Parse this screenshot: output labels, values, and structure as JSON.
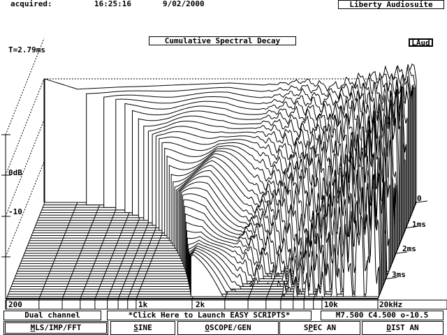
{
  "header": {
    "acquired_label": "acquired:",
    "time": "16:25:16",
    "date": "9/02/2000",
    "app_name": "Liberty Audiosuite"
  },
  "plot": {
    "title": "Cumulative Spectral Decay",
    "channel_tag": "LAud",
    "window_time": "T=2.79ms"
  },
  "status": {
    "mode": "Dual channel",
    "scripts_link": "*Click Here to Launch EASY SCRIPTS*",
    "markers": "M7.500 C4.500 o-10.5"
  },
  "buttons": [
    {
      "pre": "",
      "key": "M",
      "post": "LS/IMP/FFT",
      "active": true
    },
    {
      "pre": "",
      "key": "S",
      "post": "INE",
      "active": false
    },
    {
      "pre": "",
      "key": "O",
      "post": "SCOPE/GEN",
      "active": false
    },
    {
      "pre": "S",
      "key": "P",
      "post": "EC AN",
      "active": false
    },
    {
      "pre": "",
      "key": "D",
      "post": "IST AN",
      "active": false
    }
  ],
  "chart_data": {
    "type": "waterfall",
    "title": "Cumulative Spectral Decay",
    "x_axis": {
      "scale": "log",
      "range_hz": [
        200,
        20000
      ],
      "tick_labels": [
        {
          "f": 200,
          "label": "200"
        },
        {
          "f": 1000,
          "label": "1k"
        },
        {
          "f": 2000,
          "label": "2k"
        },
        {
          "f": 10000,
          "label": "10k"
        },
        {
          "f": 20000,
          "label": "20kHz"
        }
      ],
      "minor_ticks_hz": [
        300,
        400,
        500,
        600,
        700,
        800,
        900,
        3000,
        4000,
        5000,
        6000,
        7000,
        8000,
        9000
      ]
    },
    "y_axis": {
      "unit": "dB",
      "range_db": [
        -30,
        10
      ],
      "tick_labels": [
        {
          "v": 0,
          "label": "0dB"
        },
        {
          "v": -10,
          "label": "-10"
        }
      ],
      "ticks": [
        10,
        0,
        -10,
        -20
      ]
    },
    "z_axis": {
      "unit": "ms",
      "range_ms": [
        0,
        3.7
      ],
      "slice_step_ms": 0.1,
      "tick_labels": [
        {
          "t": 0,
          "label": "0"
        },
        {
          "t": 1,
          "label": "1ms"
        },
        {
          "t": 2,
          "label": "2ms"
        },
        {
          "t": 3,
          "label": "3ms"
        }
      ]
    },
    "frequencies_hz": [
      200,
      300,
      500,
      700,
      1000,
      1500,
      2000,
      3000,
      4000,
      5000,
      7000,
      10000,
      15000,
      20000
    ],
    "initial_level_db": [
      0,
      -2.5,
      -2,
      -1.8,
      -1.5,
      -1.2,
      -1,
      -1.5,
      -1,
      -0.5,
      -2,
      0,
      1,
      2
    ],
    "decay_db_per_ms": [
      4,
      4.5,
      5,
      6,
      7,
      6,
      5.5,
      8,
      9,
      10,
      9,
      8,
      6.5,
      6
    ],
    "lf_cutoff_hz_at_ms": [
      {
        "t": 0,
        "f": 200
      },
      {
        "t": 1,
        "f": 900
      },
      {
        "t": 2,
        "f": 1340
      },
      {
        "t": 3,
        "f": 1700
      }
    ]
  }
}
